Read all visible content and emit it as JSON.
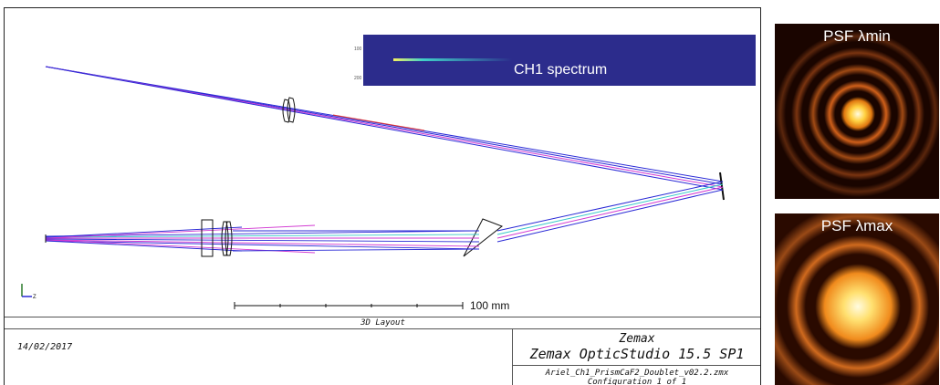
{
  "layout": {
    "title": "3D Layout",
    "scale_label": "100 mm",
    "date": "14/02/2017",
    "company": "Zemax",
    "software": "Zemax OpticStudio 15.5 SP1",
    "filename": "Ariel_Ch1_PrismCaF2_Doublet_v02.2.zmx",
    "configuration": "Configuration 1 of 1",
    "axis_label": "Z",
    "colors": {
      "ray_blue": "#2a2ad6",
      "ray_magenta": "#d23ad2",
      "ray_cyan": "#36c8c8",
      "ray_red": "#e03030"
    }
  },
  "spectrum_inset": {
    "label": "CH1 spectrum",
    "tick_top": "100",
    "tick_bottom": "200",
    "background": "#2c2c8c"
  },
  "psf": [
    {
      "label": "PSF λmin"
    },
    {
      "label": "PSF λmax"
    }
  ]
}
